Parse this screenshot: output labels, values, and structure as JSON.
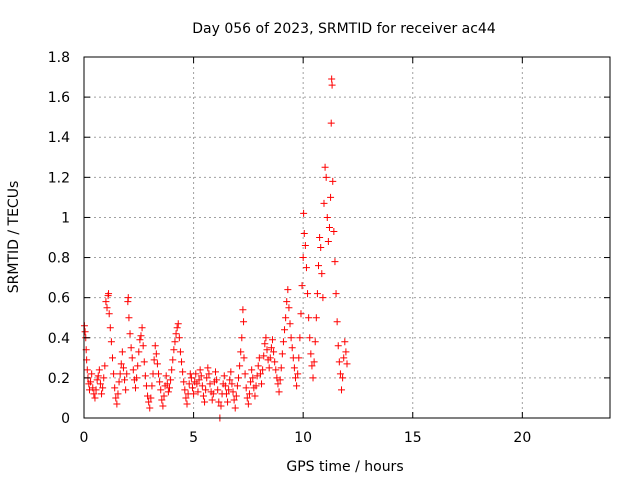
{
  "chart_data": {
    "type": "scatter",
    "title": "Day 056 of 2023, SRMTID for receiver ac44",
    "xlabel": "GPS time / hours",
    "ylabel": "SRMTID / TECUs",
    "xlim": [
      0,
      24
    ],
    "ylim": [
      0,
      1.8
    ],
    "xticks": [
      0,
      5,
      10,
      15,
      20
    ],
    "xtick_labels": [
      "0",
      "5",
      "10",
      "15",
      "20"
    ],
    "yticks": [
      0,
      0.2,
      0.4,
      0.6,
      0.8,
      1.0,
      1.2,
      1.4,
      1.6,
      1.8
    ],
    "ytick_labels": [
      "0",
      "0.2",
      "0.4",
      "0.6",
      "0.8",
      "1",
      "1.2",
      "1.4",
      "1.6",
      "1.8"
    ],
    "grid": true,
    "marker": "+",
    "color": "#ff0000",
    "series": [
      {
        "name": "ac44",
        "points": [
          [
            0.02,
            0.46
          ],
          [
            0.05,
            0.43
          ],
          [
            0.08,
            0.4
          ],
          [
            0.1,
            0.34
          ],
          [
            0.12,
            0.29
          ],
          [
            0.15,
            0.24
          ],
          [
            0.18,
            0.2
          ],
          [
            0.22,
            0.17
          ],
          [
            0.25,
            0.14
          ],
          [
            0.3,
            0.18
          ],
          [
            0.35,
            0.22
          ],
          [
            0.4,
            0.15
          ],
          [
            0.45,
            0.12
          ],
          [
            0.5,
            0.1
          ],
          [
            0.55,
            0.14
          ],
          [
            0.6,
            0.19
          ],
          [
            0.65,
            0.21
          ],
          [
            0.7,
            0.24
          ],
          [
            0.75,
            0.17
          ],
          [
            0.8,
            0.12
          ],
          [
            0.85,
            0.15
          ],
          [
            0.9,
            0.2
          ],
          [
            0.95,
            0.26
          ],
          [
            1.0,
            0.58
          ],
          [
            1.05,
            0.55
          ],
          [
            1.1,
            0.61
          ],
          [
            1.12,
            0.62
          ],
          [
            1.15,
            0.52
          ],
          [
            1.2,
            0.45
          ],
          [
            1.25,
            0.38
          ],
          [
            1.3,
            0.3
          ],
          [
            1.35,
            0.22
          ],
          [
            1.4,
            0.15
          ],
          [
            1.45,
            0.1
          ],
          [
            1.5,
            0.07
          ],
          [
            1.55,
            0.12
          ],
          [
            1.6,
            0.18
          ],
          [
            1.65,
            0.22
          ],
          [
            1.7,
            0.27
          ],
          [
            1.75,
            0.33
          ],
          [
            1.8,
            0.25
          ],
          [
            1.85,
            0.19
          ],
          [
            1.9,
            0.14
          ],
          [
            1.95,
            0.22
          ],
          [
            2.0,
            0.58
          ],
          [
            2.02,
            0.6
          ],
          [
            2.05,
            0.5
          ],
          [
            2.1,
            0.42
          ],
          [
            2.15,
            0.35
          ],
          [
            2.2,
            0.3
          ],
          [
            2.25,
            0.24
          ],
          [
            2.3,
            0.19
          ],
          [
            2.35,
            0.15
          ],
          [
            2.4,
            0.2
          ],
          [
            2.45,
            0.26
          ],
          [
            2.5,
            0.33
          ],
          [
            2.55,
            0.39
          ],
          [
            2.6,
            0.41
          ],
          [
            2.65,
            0.45
          ],
          [
            2.7,
            0.36
          ],
          [
            2.75,
            0.28
          ],
          [
            2.8,
            0.21
          ],
          [
            2.85,
            0.16
          ],
          [
            2.9,
            0.11
          ],
          [
            2.95,
            0.08
          ],
          [
            3.0,
            0.05
          ],
          [
            3.05,
            0.1
          ],
          [
            3.1,
            0.16
          ],
          [
            3.15,
            0.22
          ],
          [
            3.2,
            0.29
          ],
          [
            3.25,
            0.36
          ],
          [
            3.3,
            0.32
          ],
          [
            3.35,
            0.27
          ],
          [
            3.4,
            0.22
          ],
          [
            3.45,
            0.18
          ],
          [
            3.5,
            0.14
          ],
          [
            3.55,
            0.09
          ],
          [
            3.6,
            0.06
          ],
          [
            3.65,
            0.11
          ],
          [
            3.7,
            0.16
          ],
          [
            3.75,
            0.21
          ],
          [
            3.8,
            0.17
          ],
          [
            3.85,
            0.13
          ],
          [
            3.9,
            0.15
          ],
          [
            3.95,
            0.19
          ],
          [
            4.0,
            0.24
          ],
          [
            4.05,
            0.29
          ],
          [
            4.1,
            0.34
          ],
          [
            4.15,
            0.38
          ],
          [
            4.2,
            0.42
          ],
          [
            4.25,
            0.45
          ],
          [
            4.3,
            0.47
          ],
          [
            4.35,
            0.4
          ],
          [
            4.4,
            0.33
          ],
          [
            4.45,
            0.28
          ],
          [
            4.5,
            0.23
          ],
          [
            4.55,
            0.18
          ],
          [
            4.6,
            0.14
          ],
          [
            4.65,
            0.1
          ],
          [
            4.7,
            0.07
          ],
          [
            4.75,
            0.12
          ],
          [
            4.8,
            0.17
          ],
          [
            4.85,
            0.22
          ],
          [
            4.9,
            0.2
          ],
          [
            4.95,
            0.15
          ],
          [
            5.0,
            0.12
          ],
          [
            5.05,
            0.18
          ],
          [
            5.1,
            0.22
          ],
          [
            5.15,
            0.17
          ],
          [
            5.2,
            0.13
          ],
          [
            5.25,
            0.19
          ],
          [
            5.3,
            0.24
          ],
          [
            5.35,
            0.21
          ],
          [
            5.4,
            0.16
          ],
          [
            5.45,
            0.11
          ],
          [
            5.5,
            0.08
          ],
          [
            5.55,
            0.14
          ],
          [
            5.6,
            0.2
          ],
          [
            5.65,
            0.25
          ],
          [
            5.7,
            0.22
          ],
          [
            5.75,
            0.17
          ],
          [
            5.8,
            0.13
          ],
          [
            5.85,
            0.09
          ],
          [
            5.9,
            0.12
          ],
          [
            5.95,
            0.18
          ],
          [
            6.0,
            0.23
          ],
          [
            6.05,
            0.19
          ],
          [
            6.1,
            0.14
          ],
          [
            6.15,
            0.08
          ],
          [
            6.2,
            0.0
          ],
          [
            6.25,
            0.06
          ],
          [
            6.3,
            0.12
          ],
          [
            6.35,
            0.17
          ],
          [
            6.4,
            0.21
          ],
          [
            6.45,
            0.16
          ],
          [
            6.5,
            0.12
          ],
          [
            6.55,
            0.08
          ],
          [
            6.6,
            0.14
          ],
          [
            6.65,
            0.19
          ],
          [
            6.7,
            0.23
          ],
          [
            6.75,
            0.17
          ],
          [
            6.8,
            0.13
          ],
          [
            6.85,
            0.09
          ],
          [
            6.9,
            0.05
          ],
          [
            6.95,
            0.11
          ],
          [
            7.0,
            0.16
          ],
          [
            7.05,
            0.2
          ],
          [
            7.1,
            0.26
          ],
          [
            7.15,
            0.33
          ],
          [
            7.2,
            0.4
          ],
          [
            7.25,
            0.54
          ],
          [
            7.28,
            0.48
          ],
          [
            7.3,
            0.3
          ],
          [
            7.35,
            0.22
          ],
          [
            7.4,
            0.15
          ],
          [
            7.45,
            0.1
          ],
          [
            7.5,
            0.07
          ],
          [
            7.55,
            0.12
          ],
          [
            7.6,
            0.18
          ],
          [
            7.65,
            0.24
          ],
          [
            7.7,
            0.2
          ],
          [
            7.75,
            0.15
          ],
          [
            7.8,
            0.11
          ],
          [
            7.85,
            0.16
          ],
          [
            7.9,
            0.21
          ],
          [
            7.95,
            0.26
          ],
          [
            8.0,
            0.3
          ],
          [
            8.05,
            0.22
          ],
          [
            8.1,
            0.17
          ],
          [
            8.15,
            0.24
          ],
          [
            8.2,
            0.31
          ],
          [
            8.25,
            0.37
          ],
          [
            8.3,
            0.4
          ],
          [
            8.35,
            0.34
          ],
          [
            8.4,
            0.29
          ],
          [
            8.45,
            0.25
          ],
          [
            8.5,
            0.3
          ],
          [
            8.55,
            0.35
          ],
          [
            8.6,
            0.39
          ],
          [
            8.65,
            0.33
          ],
          [
            8.7,
            0.28
          ],
          [
            8.75,
            0.24
          ],
          [
            8.8,
            0.2
          ],
          [
            8.85,
            0.17
          ],
          [
            8.9,
            0.13
          ],
          [
            8.95,
            0.19
          ],
          [
            9.0,
            0.25
          ],
          [
            9.05,
            0.32
          ],
          [
            9.1,
            0.38
          ],
          [
            9.15,
            0.44
          ],
          [
            9.2,
            0.5
          ],
          [
            9.25,
            0.58
          ],
          [
            9.3,
            0.64
          ],
          [
            9.35,
            0.55
          ],
          [
            9.4,
            0.47
          ],
          [
            9.45,
            0.4
          ],
          [
            9.5,
            0.35
          ],
          [
            9.55,
            0.3
          ],
          [
            9.6,
            0.25
          ],
          [
            9.65,
            0.2
          ],
          [
            9.7,
            0.16
          ],
          [
            9.75,
            0.22
          ],
          [
            9.8,
            0.3
          ],
          [
            9.85,
            0.4
          ],
          [
            9.9,
            0.52
          ],
          [
            9.95,
            0.66
          ],
          [
            10.0,
            0.8
          ],
          [
            10.02,
            1.02
          ],
          [
            10.05,
            0.92
          ],
          [
            10.1,
            0.86
          ],
          [
            10.15,
            0.75
          ],
          [
            10.2,
            0.62
          ],
          [
            10.25,
            0.5
          ],
          [
            10.3,
            0.4
          ],
          [
            10.35,
            0.32
          ],
          [
            10.4,
            0.26
          ],
          [
            10.45,
            0.2
          ],
          [
            10.5,
            0.28
          ],
          [
            10.55,
            0.38
          ],
          [
            10.6,
            0.5
          ],
          [
            10.65,
            0.62
          ],
          [
            10.7,
            0.76
          ],
          [
            10.75,
            0.9
          ],
          [
            10.8,
            0.85
          ],
          [
            10.85,
            0.72
          ],
          [
            10.9,
            0.6
          ],
          [
            10.95,
            1.07
          ],
          [
            11.0,
            1.25
          ],
          [
            11.05,
            1.2
          ],
          [
            11.1,
            1.0
          ],
          [
            11.15,
            0.88
          ],
          [
            11.2,
            0.95
          ],
          [
            11.25,
            1.1
          ],
          [
            11.28,
            1.47
          ],
          [
            11.3,
            1.69
          ],
          [
            11.32,
            1.66
          ],
          [
            11.35,
            1.18
          ],
          [
            11.4,
            0.93
          ],
          [
            11.45,
            0.78
          ],
          [
            11.5,
            0.62
          ],
          [
            11.55,
            0.48
          ],
          [
            11.6,
            0.36
          ],
          [
            11.65,
            0.28
          ],
          [
            11.7,
            0.22
          ],
          [
            11.75,
            0.14
          ],
          [
            11.8,
            0.2
          ],
          [
            11.85,
            0.3
          ],
          [
            11.9,
            0.38
          ],
          [
            11.95,
            0.33
          ],
          [
            12.0,
            0.27
          ]
        ]
      }
    ]
  }
}
